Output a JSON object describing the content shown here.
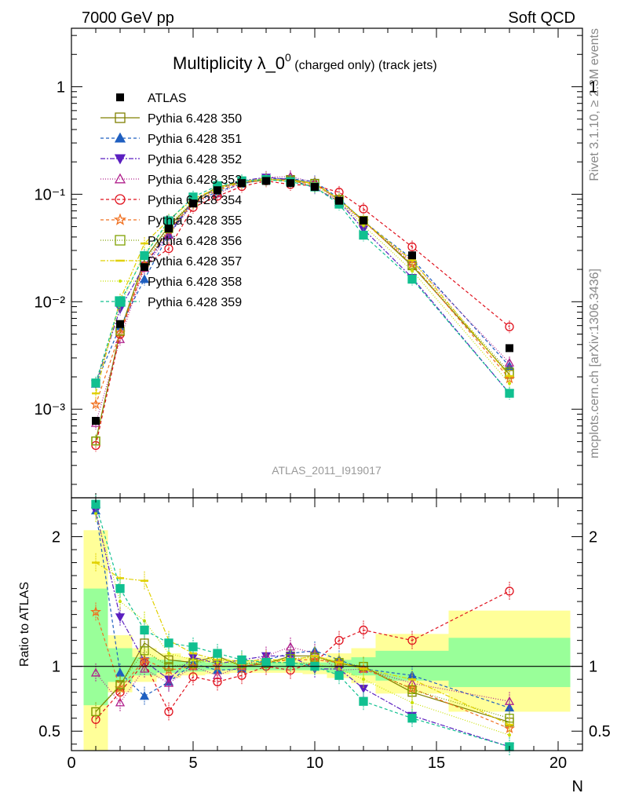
{
  "header": {
    "left": "7000 GeV pp",
    "right": "Soft QCD"
  },
  "side_labels": {
    "top": "Rivet 3.1.10, ≥ 2.3M events",
    "bottom": "mcplots.cern.ch [arXiv:1306.3436]"
  },
  "chart_data": [
    {
      "type": "line",
      "title_main": "Multiplicity λ_0",
      "title_sup": "0",
      "title_rest": " (charged only) (track jets)",
      "watermark": "ATLAS_2011_I919017",
      "xlim": [
        0,
        21
      ],
      "ylim": [
        0.00015,
        3.5
      ],
      "yscale": "log",
      "y_ticks": [
        {
          "value": 1,
          "label": "1"
        },
        {
          "value": 0.1,
          "label": "10⁻¹"
        },
        {
          "value": 0.01,
          "label": "10⁻²"
        },
        {
          "value": 0.001,
          "label": "10⁻³"
        }
      ],
      "legend_position": "top-left",
      "x": [
        1,
        2,
        3,
        4,
        5,
        6,
        7,
        8,
        9,
        10,
        11,
        12,
        14,
        18
      ],
      "data": {
        "name": "ATLAS",
        "color": "#000000",
        "values": [
          0.00078,
          0.0062,
          0.021,
          0.048,
          0.082,
          0.109,
          0.127,
          0.133,
          0.127,
          0.117,
          0.087,
          0.057,
          0.027,
          0.0037
        ]
      },
      "series": [
        {
          "name": "Pythia 6.428 350",
          "color": "#808000",
          "marker": "square-open",
          "dash": "",
          "ratio": [
            0.65,
            0.85,
            1.18,
            1.05,
            1.03,
            1.08,
            1.0,
            1.02,
            1.08,
            1.08,
            1.02,
            1.0,
            0.8,
            0.57
          ]
        },
        {
          "name": "Pythia 6.428 351",
          "color": "#1f5fc0",
          "marker": "triangle-up",
          "dash": "4,3",
          "ratio": [
            2.2,
            0.95,
            0.77,
            0.88,
            1.02,
            0.97,
            0.98,
            1.05,
            1.1,
            1.12,
            1.05,
            0.98,
            0.93,
            0.68
          ]
        },
        {
          "name": "Pythia 6.428 352",
          "color": "#5b1fc0",
          "marker": "triangle-down",
          "dash": "6,2,2,2",
          "ratio": [
            2.2,
            1.38,
            1.04,
            0.9,
            1.07,
            1.02,
            1.05,
            1.08,
            1.08,
            0.98,
            0.98,
            0.83,
            0.62,
            0.38
          ]
        },
        {
          "name": "Pythia 6.428 353",
          "color": "#b0208c",
          "marker": "triangle-up-open",
          "dash": "1,2",
          "ratio": [
            0.95,
            0.72,
            0.98,
            0.87,
            1.0,
            0.93,
            1.0,
            1.08,
            1.15,
            1.1,
            0.97,
            0.98,
            0.87,
            0.73
          ]
        },
        {
          "name": "Pythia 6.428 354",
          "color": "#e0101c",
          "marker": "circle-open",
          "dash": "4,3",
          "ratio": [
            0.59,
            0.8,
            1.03,
            0.65,
            0.92,
            0.88,
            0.93,
            1.0,
            0.97,
            1.03,
            1.2,
            1.28,
            1.2,
            1.58
          ]
        },
        {
          "name": "Pythia 6.428 355",
          "color": "#f07020",
          "marker": "star",
          "dash": "4,3",
          "ratio": [
            1.42,
            0.83,
            1.05,
            0.97,
            1.0,
            1.0,
            1.0,
            1.03,
            1.05,
            1.05,
            1.03,
            0.98,
            0.83,
            0.52
          ]
        },
        {
          "name": "Pythia 6.428 356",
          "color": "#80a000",
          "marker": "square-open",
          "dash": "1,2",
          "ratio": [
            0.65,
            0.86,
            1.12,
            1.0,
            1.02,
            1.06,
            1.02,
            1.03,
            1.06,
            1.07,
            1.03,
            1.0,
            0.82,
            0.6
          ]
        },
        {
          "name": "Pythia 6.428 357",
          "color": "#e0d000",
          "marker": "dash",
          "dash": "6,2,2,2",
          "ratio": [
            1.8,
            1.68,
            1.66,
            1.2,
            1.1,
            1.05,
            1.04,
            1.05,
            1.05,
            1.08,
            1.03,
            0.98,
            0.9,
            0.55
          ]
        },
        {
          "name": "Pythia 6.428 358",
          "color": "#c8e000",
          "marker": "dot",
          "dash": "1,2",
          "ratio": [
            2.18,
            1.5,
            1.35,
            1.1,
            1.05,
            1.03,
            1.02,
            1.03,
            1.03,
            1.02,
            0.98,
            0.9,
            0.72,
            0.47
          ]
        },
        {
          "name": "Pythia 6.428 359",
          "color": "#10c090",
          "marker": "square",
          "dash": "4,3",
          "ratio": [
            2.25,
            1.6,
            1.28,
            1.18,
            1.15,
            1.1,
            1.05,
            1.03,
            1.03,
            1.0,
            0.93,
            0.73,
            0.6,
            0.38
          ]
        }
      ]
    },
    {
      "type": "line",
      "ylabel": "Ratio to ATLAS",
      "xlabel": "N",
      "xlim": [
        0,
        21
      ],
      "ylim": [
        0.35,
        2.3
      ],
      "x_ticks": [
        0,
        5,
        10,
        15,
        20
      ],
      "y_ticks": [
        0.5,
        1,
        2
      ],
      "bands": [
        {
          "x0": 0.5,
          "x1": 1.5,
          "stat": [
            0.7,
            1.6
          ],
          "total": [
            0.3,
            2.05
          ]
        },
        {
          "x0": 1.5,
          "x1": 2.5,
          "stat": [
            0.88,
            1.14
          ],
          "total": [
            0.8,
            1.24
          ]
        },
        {
          "x0": 2.5,
          "x1": 3.5,
          "stat": [
            0.93,
            1.07
          ],
          "total": [
            0.88,
            1.14
          ]
        },
        {
          "x0": 3.5,
          "x1": 4.5,
          "stat": [
            0.95,
            1.05
          ],
          "total": [
            0.91,
            1.1
          ]
        },
        {
          "x0": 4.5,
          "x1": 5.5,
          "stat": [
            0.96,
            1.04
          ],
          "total": [
            0.93,
            1.07
          ]
        },
        {
          "x0": 5.5,
          "x1": 6.5,
          "stat": [
            0.97,
            1.03
          ],
          "total": [
            0.94,
            1.06
          ]
        },
        {
          "x0": 6.5,
          "x1": 7.5,
          "stat": [
            0.97,
            1.03
          ],
          "total": [
            0.95,
            1.05
          ]
        },
        {
          "x0": 7.5,
          "x1": 8.5,
          "stat": [
            0.97,
            1.03
          ],
          "total": [
            0.95,
            1.05
          ]
        },
        {
          "x0": 8.5,
          "x1": 9.5,
          "stat": [
            0.97,
            1.03
          ],
          "total": [
            0.95,
            1.06
          ]
        },
        {
          "x0": 9.5,
          "x1": 10.5,
          "stat": [
            0.97,
            1.03
          ],
          "total": [
            0.94,
            1.07
          ]
        },
        {
          "x0": 10.5,
          "x1": 11.5,
          "stat": [
            0.95,
            1.05
          ],
          "total": [
            0.91,
            1.1
          ]
        },
        {
          "x0": 11.5,
          "x1": 12.5,
          "stat": [
            0.93,
            1.07
          ],
          "total": [
            0.87,
            1.14
          ]
        },
        {
          "x0": 12.5,
          "x1": 15.5,
          "stat": [
            0.89,
            1.12
          ],
          "total": [
            0.79,
            1.25
          ]
        },
        {
          "x0": 15.5,
          "x1": 20.5,
          "stat": [
            0.84,
            1.22
          ],
          "total": [
            0.65,
            1.43
          ]
        }
      ]
    }
  ]
}
